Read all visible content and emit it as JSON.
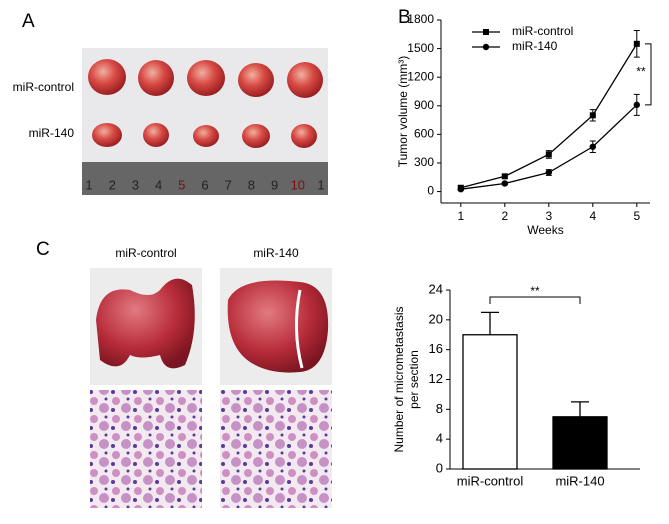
{
  "panels": {
    "a": "A",
    "b": "B",
    "c": "C"
  },
  "panel_a": {
    "rows": [
      "miR-control",
      "miR-140"
    ],
    "ruler": [
      "1",
      "2",
      "3",
      "4",
      "5",
      "6",
      "7",
      "8",
      "9",
      "10",
      "1"
    ]
  },
  "panel_c": {
    "columns": [
      "miR-control",
      "miR-140"
    ]
  },
  "chart_data": [
    {
      "type": "line",
      "xlabel": "Weeks",
      "ylabel": "Tumor volume (mm³)",
      "x": [
        1,
        2,
        3,
        4,
        5
      ],
      "xlim": [
        0.55,
        5.3
      ],
      "xticks": [
        1,
        2,
        3,
        4,
        5
      ],
      "ylim": [
        -120,
        1800
      ],
      "yticks": [
        0,
        300,
        600,
        900,
        1200,
        1500,
        1800
      ],
      "annotation": "**",
      "series": [
        {
          "name": "miR-control",
          "color": "#000000",
          "marker": "square",
          "values": [
            40,
            160,
            390,
            800,
            1550
          ],
          "errors": [
            15,
            20,
            40,
            60,
            140
          ]
        },
        {
          "name": "miR-140",
          "color": "#000000",
          "marker": "circle",
          "values": [
            25,
            85,
            200,
            470,
            910
          ],
          "errors": [
            10,
            15,
            30,
            60,
            110
          ]
        }
      ]
    },
    {
      "type": "bar",
      "ylabel": [
        "Number of micrometastasis",
        "per section"
      ],
      "categories": [
        "miR-control",
        "miR-140"
      ],
      "values": [
        18,
        7
      ],
      "errors": [
        3,
        2
      ],
      "colors": [
        "#ffffff",
        "#000000"
      ],
      "ylim": [
        0,
        24
      ],
      "yticks": [
        0,
        4,
        8,
        12,
        16,
        20,
        24
      ],
      "annotation": "**"
    }
  ]
}
